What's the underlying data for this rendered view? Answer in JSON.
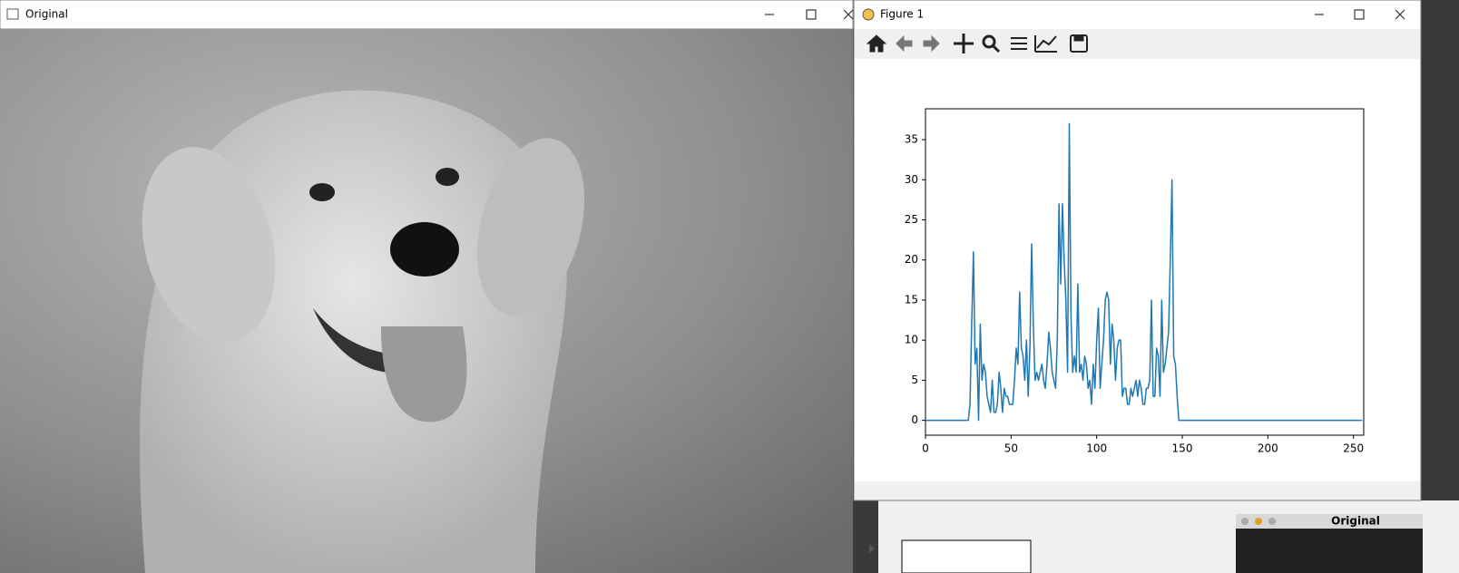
{
  "windows": {
    "original": {
      "title": "Original"
    },
    "figure": {
      "title": "Figure 1"
    },
    "mini": {
      "title": "Original"
    }
  },
  "chart_data": {
    "type": "line",
    "color": "#1f77b4",
    "x": [
      0,
      25,
      26,
      27,
      28,
      29,
      30,
      31,
      32,
      33,
      34,
      35,
      36,
      37,
      38,
      39,
      40,
      41,
      42,
      43,
      44,
      45,
      46,
      47,
      48,
      49,
      50,
      51,
      52,
      53,
      54,
      55,
      56,
      57,
      58,
      59,
      60,
      61,
      62,
      63,
      64,
      65,
      66,
      67,
      68,
      69,
      70,
      71,
      72,
      73,
      74,
      75,
      76,
      77,
      78,
      79,
      80,
      81,
      82,
      83,
      84,
      85,
      86,
      87,
      88,
      89,
      90,
      91,
      92,
      93,
      94,
      95,
      96,
      97,
      98,
      99,
      100,
      101,
      102,
      103,
      104,
      105,
      106,
      107,
      108,
      109,
      110,
      111,
      112,
      113,
      114,
      115,
      116,
      117,
      118,
      119,
      120,
      121,
      122,
      123,
      124,
      125,
      126,
      127,
      128,
      129,
      130,
      131,
      132,
      133,
      134,
      135,
      136,
      137,
      138,
      139,
      140,
      141,
      142,
      143,
      144,
      145,
      146,
      147,
      148,
      149,
      255
    ],
    "values": [
      0,
      0,
      2,
      12,
      21,
      7,
      9,
      0,
      12,
      5,
      7,
      6,
      3,
      2,
      1,
      5,
      1,
      1,
      2,
      6,
      4,
      1,
      4,
      3,
      3,
      2,
      2,
      2,
      5,
      9,
      7,
      16,
      9,
      8,
      5,
      10,
      3,
      9,
      22,
      12,
      5,
      6,
      5,
      6,
      7,
      5,
      4,
      7,
      11,
      9,
      6,
      5,
      4,
      10,
      27,
      17,
      27,
      20,
      15,
      6,
      37,
      13,
      6,
      8,
      6,
      17,
      6,
      7,
      5,
      8,
      7,
      4,
      5,
      2,
      7,
      4,
      10,
      14,
      4,
      7,
      10,
      15,
      16,
      15,
      7,
      12,
      10,
      5,
      9,
      10,
      10,
      3,
      4,
      4,
      2,
      2,
      4,
      3,
      4,
      5,
      3,
      5,
      4,
      2,
      2,
      4,
      4,
      5,
      15,
      3,
      3,
      9,
      8,
      3,
      15,
      6,
      7,
      9,
      11,
      20,
      30,
      8,
      7,
      3,
      0,
      0,
      0
    ],
    "xlim": [
      0,
      256
    ],
    "ylim": [
      -1.85,
      38.85
    ],
    "xticks": [
      0,
      50,
      100,
      150,
      200,
      250
    ],
    "yticks": [
      0,
      5,
      10,
      15,
      20,
      25,
      30,
      35
    ]
  }
}
